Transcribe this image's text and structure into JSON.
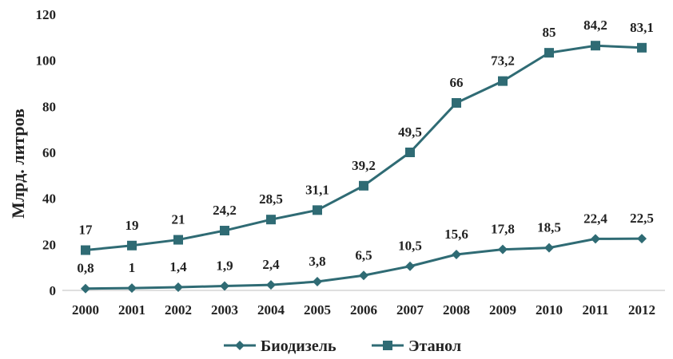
{
  "chart_data": {
    "type": "line",
    "title": "",
    "xlabel": "",
    "ylabel": "Млрд. литров",
    "ylim": [
      0,
      120
    ],
    "yticks": [
      0,
      20,
      40,
      60,
      80,
      100,
      120
    ],
    "grid": false,
    "legend_position": "bottom",
    "categories": [
      "2000",
      "2001",
      "2002",
      "2003",
      "2004",
      "2005",
      "2006",
      "2007",
      "2008",
      "2009",
      "2010",
      "2011",
      "2012"
    ],
    "series": [
      {
        "name": "Биодизель",
        "marker": "diamond",
        "color": "#2f6b74",
        "values": [
          0.8,
          1,
          1.4,
          1.9,
          2.4,
          3.8,
          6.5,
          10.5,
          15.6,
          17.8,
          18.5,
          22.4,
          22.5
        ],
        "labels": [
          "0,8",
          "1",
          "1,4",
          "1,9",
          "2,4",
          "3,8",
          "6,5",
          "10,5",
          "15,6",
          "17,8",
          "18,5",
          "22,4",
          "22,5"
        ]
      },
      {
        "name": "Этанол",
        "marker": "square",
        "color": "#2f6b74",
        "values": [
          17.5,
          19.5,
          22,
          26,
          30.8,
          34.9,
          45.5,
          60,
          81.5,
          91,
          103.3,
          106.4,
          105.5
        ],
        "labels": [
          "17",
          "19",
          "21",
          "24,2",
          "28,5",
          "31,1",
          "39,2",
          "49,5",
          "66",
          "73,2",
          "85",
          "84,2",
          "83,1"
        ]
      }
    ]
  }
}
